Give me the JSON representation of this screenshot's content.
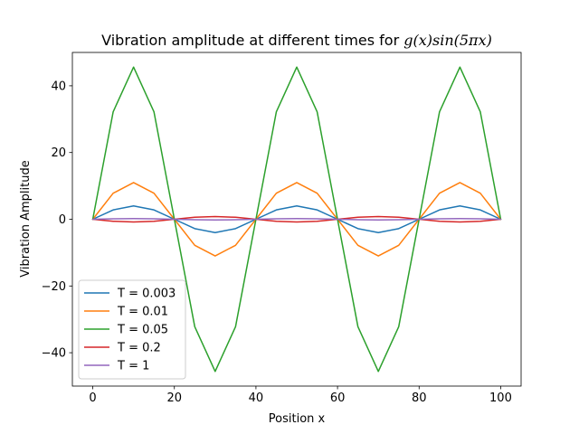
{
  "chart_data": {
    "type": "line",
    "title_prefix": "Vibration amplitude at different times for ",
    "title_formula": "g(x)sin(5πx)",
    "xlabel": "Position x",
    "ylabel": "Vibration Amplitude",
    "xlim": [
      -5,
      105
    ],
    "ylim": [
      -50,
      50
    ],
    "x_ticks": [
      0,
      20,
      40,
      60,
      80,
      100
    ],
    "y_ticks": [
      -40,
      -20,
      0,
      20,
      40
    ],
    "x_tick_labels": [
      "0",
      "20",
      "40",
      "60",
      "80",
      "100"
    ],
    "y_tick_labels": [
      "−40",
      "−20",
      "0",
      "20",
      "40"
    ],
    "grid": false,
    "legend_position": "lower-left",
    "x": [
      0,
      5,
      10,
      15,
      20,
      25,
      30,
      35,
      40,
      45,
      50,
      55,
      60,
      65,
      70,
      75,
      80,
      85,
      90,
      95,
      100
    ],
    "series": [
      {
        "name": "T = 0.003",
        "color": "#1f77b4",
        "values": [
          0,
          2.8,
          4.0,
          2.8,
          0,
          -2.8,
          -4.0,
          -2.8,
          0,
          2.8,
          4.0,
          2.8,
          0,
          -2.8,
          -4.0,
          -2.8,
          0,
          2.8,
          4.0,
          2.8,
          0
        ]
      },
      {
        "name": "T = 0.01",
        "color": "#ff7f0e",
        "values": [
          0,
          7.8,
          11.0,
          7.8,
          0,
          -7.8,
          -11.0,
          -7.8,
          0,
          7.8,
          11.0,
          7.8,
          0,
          -7.8,
          -11.0,
          -7.8,
          0,
          7.8,
          11.0,
          7.8,
          0
        ]
      },
      {
        "name": "T = 0.05",
        "color": "#2ca02c",
        "values": [
          0,
          32.2,
          45.6,
          32.2,
          0,
          -32.2,
          -45.6,
          -32.2,
          0,
          32.2,
          45.6,
          32.2,
          0,
          -32.2,
          -45.6,
          -32.2,
          0,
          32.2,
          45.6,
          32.2,
          0
        ]
      },
      {
        "name": "T = 0.2",
        "color": "#d62728",
        "values": [
          0,
          -0.6,
          -0.8,
          -0.6,
          0,
          0.6,
          0.8,
          0.6,
          0,
          -0.6,
          -0.8,
          -0.6,
          0,
          0.6,
          0.8,
          0.6,
          0,
          -0.6,
          -0.8,
          -0.6,
          0
        ]
      },
      {
        "name": "T = 1",
        "color": "#9467bd",
        "values": [
          0,
          0.14,
          0.2,
          0.14,
          0,
          -0.14,
          -0.2,
          -0.14,
          0,
          0.14,
          0.2,
          0.14,
          0,
          -0.14,
          -0.2,
          -0.14,
          0,
          0.14,
          0.2,
          0.14,
          0
        ]
      }
    ]
  }
}
